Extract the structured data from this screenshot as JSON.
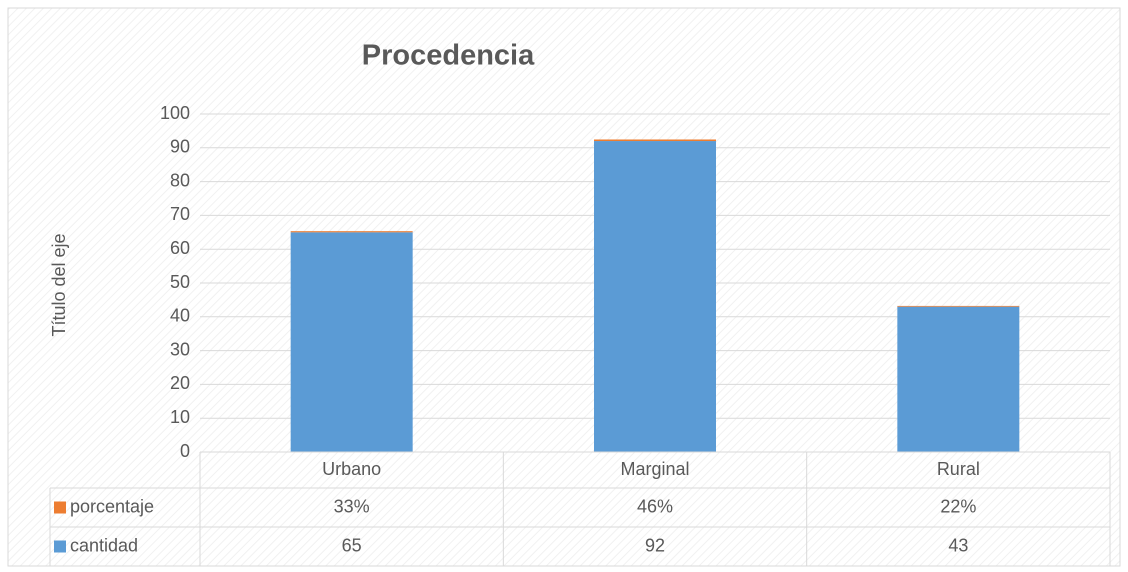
{
  "chart_data": {
    "type": "stacked_bar",
    "title": "Procedencia",
    "y_axis_label": "Título del eje",
    "categories": [
      "Urbano",
      "Marginal",
      "Rural"
    ],
    "series": [
      {
        "name": "porcentaje",
        "color": "#ed7d31",
        "values": [
          0.33,
          0.46,
          0.22
        ],
        "value_labels": [
          "33%",
          "46%",
          "22%"
        ]
      },
      {
        "name": "cantidad",
        "color": "#5b9bd5",
        "values": [
          65,
          92,
          43
        ]
      }
    ],
    "ylim": [
      0,
      100
    ],
    "yticks": [
      0,
      10,
      20,
      30,
      40,
      50,
      60,
      70,
      80,
      90,
      100
    ],
    "grid": true,
    "data_table": true
  }
}
